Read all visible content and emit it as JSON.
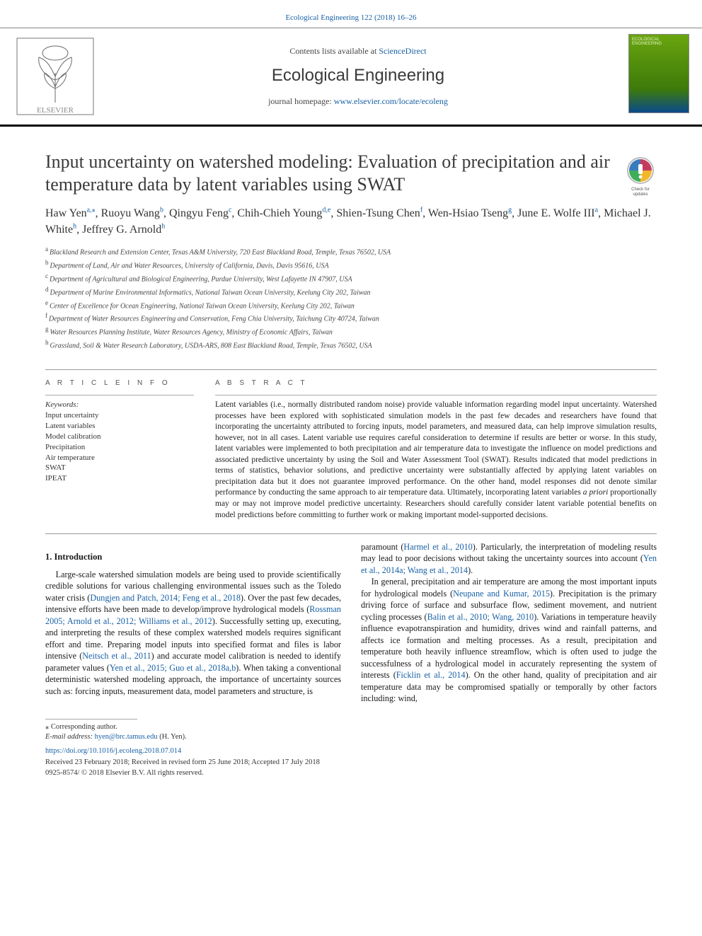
{
  "topbar": {
    "citation": "Ecological Engineering 122 (2018) 16–26"
  },
  "header": {
    "contents_prefix": "Contents lists available at ",
    "contents_link": "ScienceDirect",
    "journal": "Ecological Engineering",
    "homepage_prefix": "journal homepage: ",
    "homepage_link": "www.elsevier.com/locate/ecoleng",
    "cover_label": "ECOLOGICAL ENGINEERING"
  },
  "check_updates": {
    "line1": "Check for",
    "line2": "updates"
  },
  "article": {
    "title": "Input uncertainty on watershed modeling: Evaluation of precipitation and air temperature data by latent variables using SWAT",
    "authors_html": "Haw Yen|a,*|, Ruoyu Wang|b|, Qingyu Feng|c|, Chih-Chieh Young|d,e|, Shien-Tsung Chen|f|, Wen-Hsiao Tseng|g|, June E. Wolfe III|a|, Michael J. White|h|, Jeffrey G. Arnold|h|",
    "affiliations": [
      {
        "sup": "a",
        "text": "Blackland Research and Extension Center, Texas A&M University, 720 East Blackland Road, Temple, Texas 76502, USA"
      },
      {
        "sup": "b",
        "text": "Department of Land, Air and Water Resources, University of California, Davis, Davis 95616, USA"
      },
      {
        "sup": "c",
        "text": "Department of Agricultural and Biological Engineering, Purdue University, West Lafayette IN 47907, USA"
      },
      {
        "sup": "d",
        "text": "Department of Marine Environmental Informatics, National Taiwan Ocean University, Keelung City 202, Taiwan"
      },
      {
        "sup": "e",
        "text": "Center of Excellence for Ocean Engineering, National Taiwan Ocean University, Keelung City 202, Taiwan"
      },
      {
        "sup": "f",
        "text": "Department of Water Resources Engineering and Conservation, Feng Chia University, Taichung City 40724, Taiwan"
      },
      {
        "sup": "g",
        "text": "Water Resources Planning Institute, Water Resources Agency, Ministry of Economic Affairs, Taiwan"
      },
      {
        "sup": "h",
        "text": "Grassland, Soil & Water Research Laboratory, USDA-ARS, 808 East Blackland Road, Temple, Texas 76502, USA"
      }
    ]
  },
  "meta": {
    "article_info_head": "A R T I C L E  I N F O",
    "abstract_head": "A B S T R A C T",
    "keywords_label": "Keywords:",
    "keywords": [
      "Input uncertainty",
      "Latent variables",
      "Model calibration",
      "Precipitation",
      "Air temperature",
      "SWAT",
      "IPEAT"
    ],
    "abstract": "Latent variables (i.e., normally distributed random noise) provide valuable information regarding model input uncertainty. Watershed processes have been explored with sophisticated simulation models in the past few decades and researchers have found that incorporating the uncertainty attributed to forcing inputs, model parameters, and measured data, can help improve simulation results, however, not in all cases. Latent variable use requires careful consideration to determine if results are better or worse. In this study, latent variables were implemented to both precipitation and air temperature data to investigate the influence on model predictions and associated predictive uncertainty by using the Soil and Water Assessment Tool (SWAT). Results indicated that model predictions in terms of statistics, behavior solutions, and predictive uncertainty were substantially affected by applying latent variables on precipitation data but it does not guarantee improved performance. On the other hand, model responses did not denote similar performance by conducting the same approach to air temperature data. Ultimately, incorporating latent variables a priori proportionally may or may not improve model predictive uncertainty. Researchers should carefully consider latent variable potential benefits on model predictions before committing to further work or making important model-supported decisions."
  },
  "body": {
    "section1_head": "1. Introduction",
    "left_p1_a": "Large-scale watershed simulation models are being used to provide scientifically credible solutions for various challenging environmental issues such as the Toledo water crisis (",
    "left_p1_link1": "Dungjen and Patch, 2014; Feng et al., 2018",
    "left_p1_b": "). Over the past few decades, intensive efforts have been made to develop/improve hydrological models (",
    "left_p1_link2": "Rossman 2005; Arnold et al., 2012; Williams et al., 2012",
    "left_p1_c": "). Successfully setting up, executing, and interpreting the results of these complex watershed models requires significant effort and time. Preparing model inputs into specified format and files is labor intensive (",
    "left_p1_link3": "Neitsch et al., 2011",
    "left_p1_d": ") and accurate model calibration is needed to identify parameter values (",
    "left_p1_link4": "Yen et al., 2015; Guo et al., 2018a,b",
    "left_p1_e": "). When taking a conventional deterministic watershed modeling approach, the importance of uncertainty sources such as: forcing inputs, measurement data, model parameters and structure, is",
    "right_p1_a": "paramount (",
    "right_p1_link1": "Harmel et al., 2010",
    "right_p1_b": "). Particularly, the interpretation of modeling results may lead to poor decisions without taking the uncertainty sources into account (",
    "right_p1_link2": "Yen et al., 2014a; Wang et al., 2014",
    "right_p1_c": ").",
    "right_p2_a": "In general, precipitation and air temperature are among the most important inputs for hydrological models (",
    "right_p2_link1": "Neupane and Kumar, 2015",
    "right_p2_b": "). Precipitation is the primary driving force of surface and subsurface flow, sediment movement, and nutrient cycling processes (",
    "right_p2_link2": "Balin et al., 2010; Wang, 2010",
    "right_p2_c": "). Variations in temperature heavily influence evapotranspiration and humidity, drives wind and rainfall patterns, and affects ice formation and melting processes. As a result, precipitation and temperature both heavily influence streamflow, which is often used to judge the successfulness of a hydrological model in accurately representing the system of interests (",
    "right_p2_link3": "Ficklin et al., 2014",
    "right_p2_d": "). On the other hand, quality of precipitation and air temperature data may be compromised spatially or temporally by other factors including: wind,"
  },
  "footer": {
    "corr_marker": "⁎ Corresponding author.",
    "email_label": "E-mail address: ",
    "email": "hyen@brc.tamus.edu",
    "email_suffix": " (H. Yen).",
    "doi": "https://doi.org/10.1016/j.ecoleng.2018.07.014",
    "dates": "Received 23 February 2018; Received in revised form 25 June 2018; Accepted 17 July 2018",
    "issn": "0925-8574/ © 2018 Elsevier B.V. All rights reserved."
  },
  "colors": {
    "link": "#1760a5",
    "text": "#1a1a1a",
    "rule": "#999999",
    "band_border": "#000000"
  }
}
